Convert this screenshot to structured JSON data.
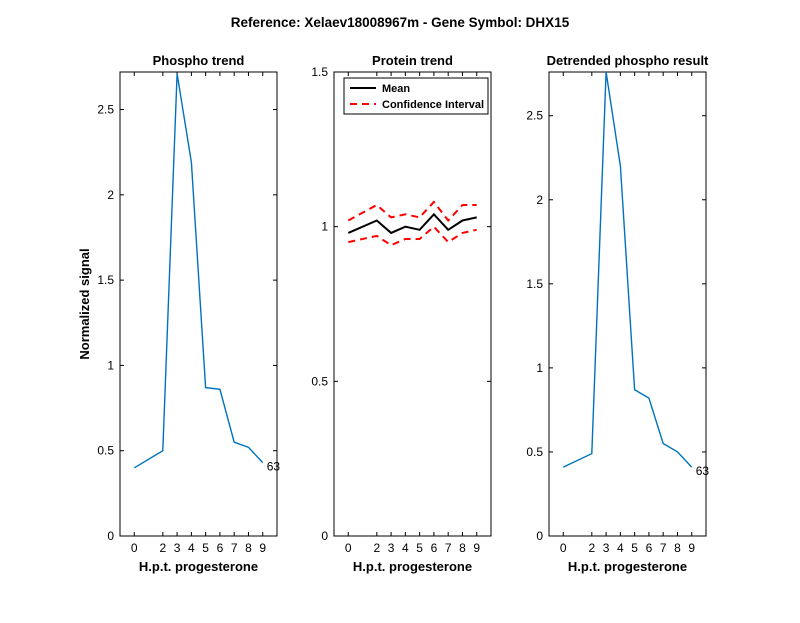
{
  "figure": {
    "title": "Reference:  Xelaev18008967m - Gene Symbol:  DHX15"
  },
  "chart_data": [
    {
      "type": "line",
      "title": "Phospho trend",
      "xlabel": "H.p.t. progesterone",
      "ylabel": "Normalized signal",
      "categories": [
        "0",
        "2",
        "3",
        "4",
        "5",
        "6",
        "7",
        "8",
        "9"
      ],
      "xlim": [
        -1,
        10
      ],
      "ylim": [
        0,
        2.72
      ],
      "yticks": [
        0,
        0.5,
        1,
        1.5,
        2,
        2.5
      ],
      "ytick_labels": [
        "0",
        "0.5",
        "1",
        "1.5",
        "2",
        "2.5"
      ],
      "series": [
        {
          "color": "#0072BD",
          "style": "solid",
          "values": [
            0.4,
            0.5,
            2.71,
            2.19,
            0.87,
            0.86,
            0.55,
            0.52,
            0.43
          ]
        }
      ],
      "annotations": [
        {
          "text": "63",
          "at_category": "9"
        }
      ],
      "grid": false
    },
    {
      "type": "line",
      "title": "Protein trend",
      "xlabel": "H.p.t. progesterone",
      "ylabel": "",
      "categories": [
        "0",
        "2",
        "3",
        "4",
        "5",
        "6",
        "7",
        "8",
        "9"
      ],
      "xlim": [
        -1,
        10
      ],
      "ylim": [
        0,
        1.5
      ],
      "yticks": [
        0,
        0.5,
        1,
        1.5
      ],
      "ytick_labels": [
        "0",
        "0.5",
        "1",
        "1.5"
      ],
      "series": [
        {
          "name": "Mean",
          "color": "#000000",
          "style": "solid",
          "values": [
            0.98,
            1.02,
            0.98,
            1.0,
            0.99,
            1.04,
            0.99,
            1.02,
            1.03
          ]
        },
        {
          "name": "Confidence Interval",
          "color": "#ff0000",
          "style": "dashed",
          "values": [
            1.02,
            1.07,
            1.03,
            1.04,
            1.03,
            1.08,
            1.02,
            1.07,
            1.07
          ]
        },
        {
          "color": "#ff0000",
          "style": "dashed",
          "values": [
            0.95,
            0.97,
            0.94,
            0.96,
            0.96,
            1.0,
            0.95,
            0.98,
            0.99
          ]
        }
      ],
      "legend": {
        "position": "top-left",
        "entries": [
          "Mean",
          "Confidence Interval"
        ]
      },
      "grid": false
    },
    {
      "type": "line",
      "title": "Detrended phospho result",
      "xlabel": "H.p.t. progesterone",
      "ylabel": "",
      "categories": [
        "0",
        "2",
        "3",
        "4",
        "5",
        "6",
        "7",
        "8",
        "9"
      ],
      "xlim": [
        -1,
        10
      ],
      "ylim": [
        0,
        2.76
      ],
      "yticks": [
        0,
        0.5,
        1,
        1.5,
        2,
        2.5
      ],
      "ytick_labels": [
        "0",
        "0.5",
        "1",
        "1.5",
        "2",
        "2.5"
      ],
      "series": [
        {
          "color": "#0072BD",
          "style": "solid",
          "values": [
            0.41,
            0.49,
            2.76,
            2.2,
            0.87,
            0.82,
            0.55,
            0.5,
            0.41
          ]
        }
      ],
      "annotations": [
        {
          "text": "63",
          "at_category": "9"
        }
      ],
      "grid": false
    }
  ]
}
